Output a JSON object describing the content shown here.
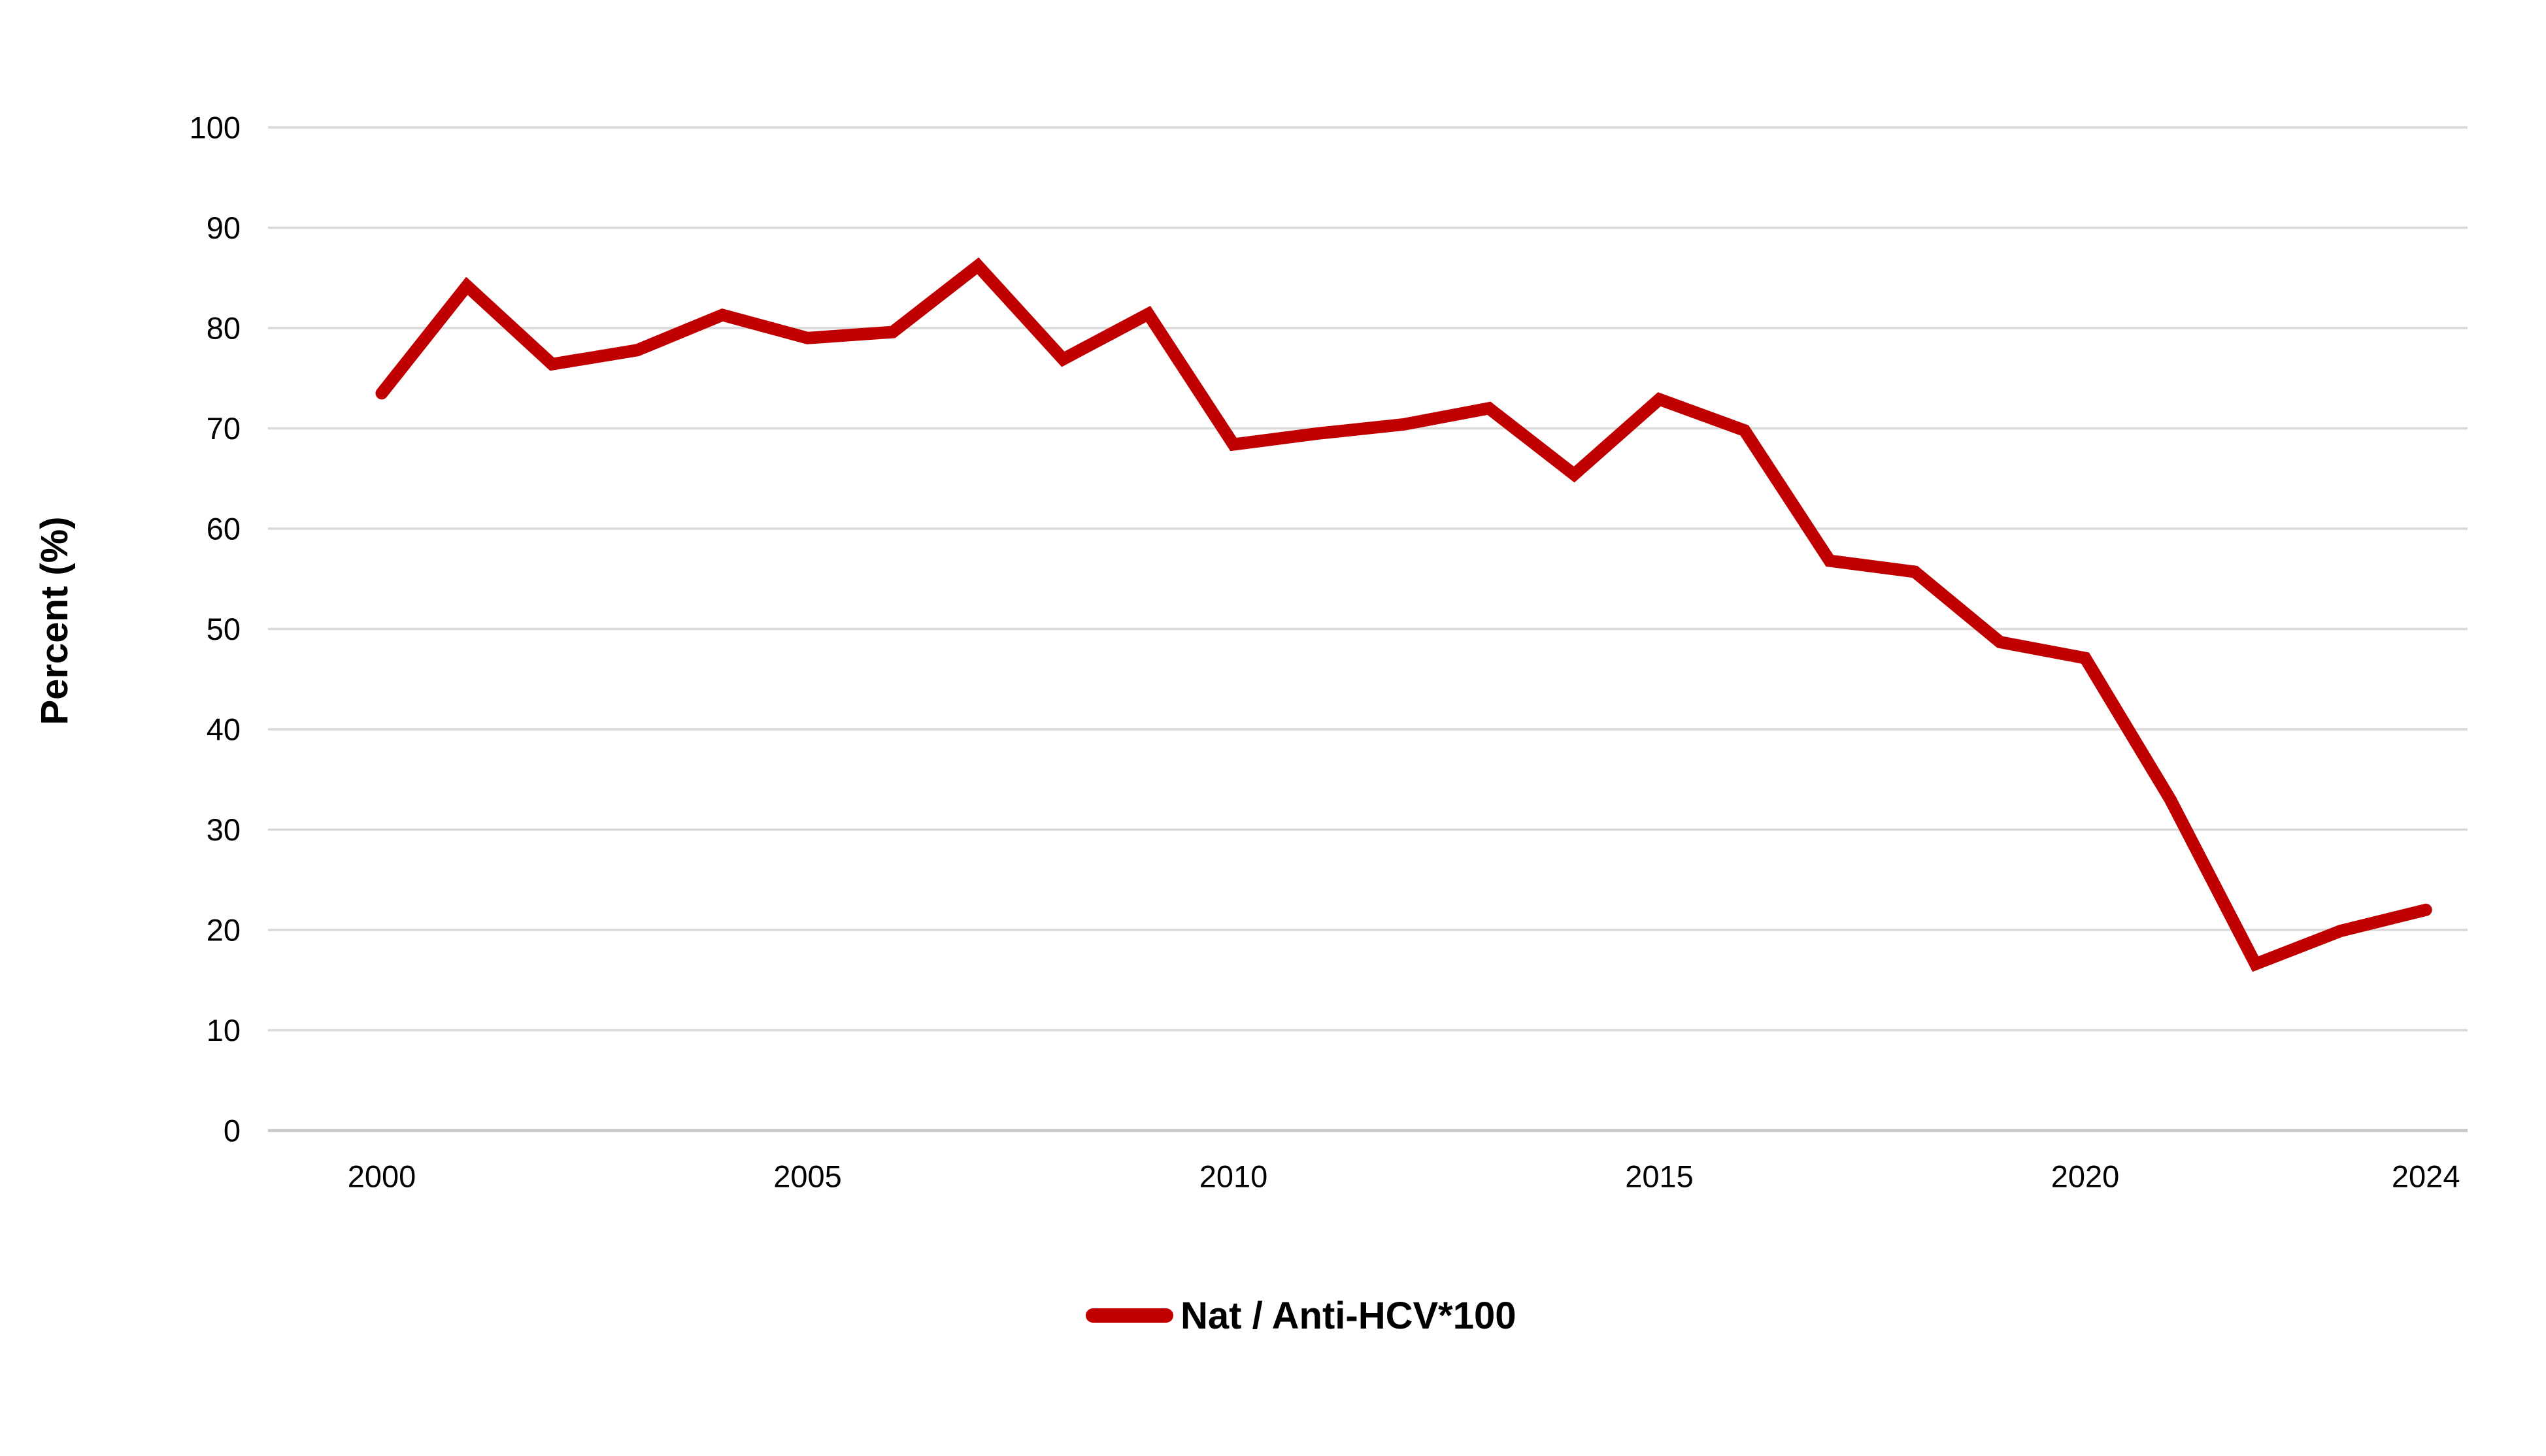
{
  "page": {
    "background": "#ffffff"
  },
  "chart_data": {
    "type": "line",
    "title": "",
    "xlabel": "",
    "ylabel": "Percent (%)",
    "ylim": [
      0,
      100
    ],
    "yticks": [
      0,
      10,
      20,
      30,
      40,
      50,
      60,
      70,
      80,
      90,
      100
    ],
    "xticks": [
      2000,
      2005,
      2010,
      2015,
      2020,
      2024
    ],
    "grid": "horizontal",
    "x": [
      2000,
      2001,
      2002,
      2003,
      2004,
      2005,
      2006,
      2007,
      2008,
      2009,
      2010,
      2011,
      2012,
      2013,
      2014,
      2015,
      2016,
      2017,
      2018,
      2019,
      2020,
      2021,
      2022,
      2023,
      2024
    ],
    "series": [
      {
        "name": "Nat / Anti-HCV*100",
        "color": "#C00000",
        "values": [
          73.5,
          84.2,
          76.4,
          77.8,
          81.3,
          79.0,
          79.6,
          86.2,
          76.9,
          81.4,
          68.4,
          69.5,
          70.4,
          72.0,
          65.4,
          72.9,
          69.8,
          56.8,
          55.7,
          48.7,
          47.1,
          33.0,
          16.6,
          19.9,
          22.0
        ]
      }
    ],
    "legend": {
      "position": "bottom-center",
      "entries": [
        "Nat / Anti-HCV*100"
      ]
    },
    "colors": {
      "gridline": "#D9D9D9",
      "axis_line": "#C9C9C9",
      "text": "#000000"
    }
  }
}
